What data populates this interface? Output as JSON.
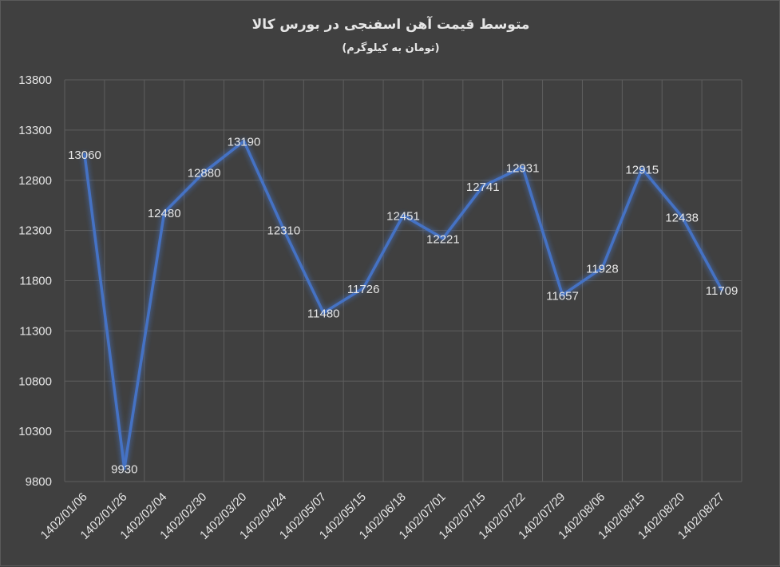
{
  "chart_data": {
    "type": "line",
    "title": "متوسط قیمت آهن اسفنجی در بورس کالا",
    "subtitle": "(تومان به کیلوگرم)",
    "xlabel": "",
    "ylabel": "",
    "categories": [
      "1402/01/06",
      "1402/01/26",
      "1402/02/04",
      "1402/02/30",
      "1402/03/20",
      "1402/04/24",
      "1402/05/07",
      "1402/05/15",
      "1402/06/18",
      "1402/07/01",
      "1402/07/15",
      "1402/07/22",
      "1402/07/29",
      "1402/08/06",
      "1402/08/15",
      "1402/08/20",
      "1402/08/27"
    ],
    "series": [
      {
        "values": [
          13060,
          9930,
          12480,
          12880,
          13190,
          12310,
          11480,
          11726,
          12451,
          12221,
          12741,
          12931,
          11657,
          11928,
          12915,
          12438,
          11709
        ],
        "color": "#4472c4"
      }
    ],
    "ylim": [
      9800,
      13800
    ],
    "yticks": [
      9800,
      10300,
      10800,
      11300,
      11800,
      12300,
      12800,
      13300,
      13800
    ],
    "grid": true,
    "legend": "none",
    "data_labels": true
  }
}
